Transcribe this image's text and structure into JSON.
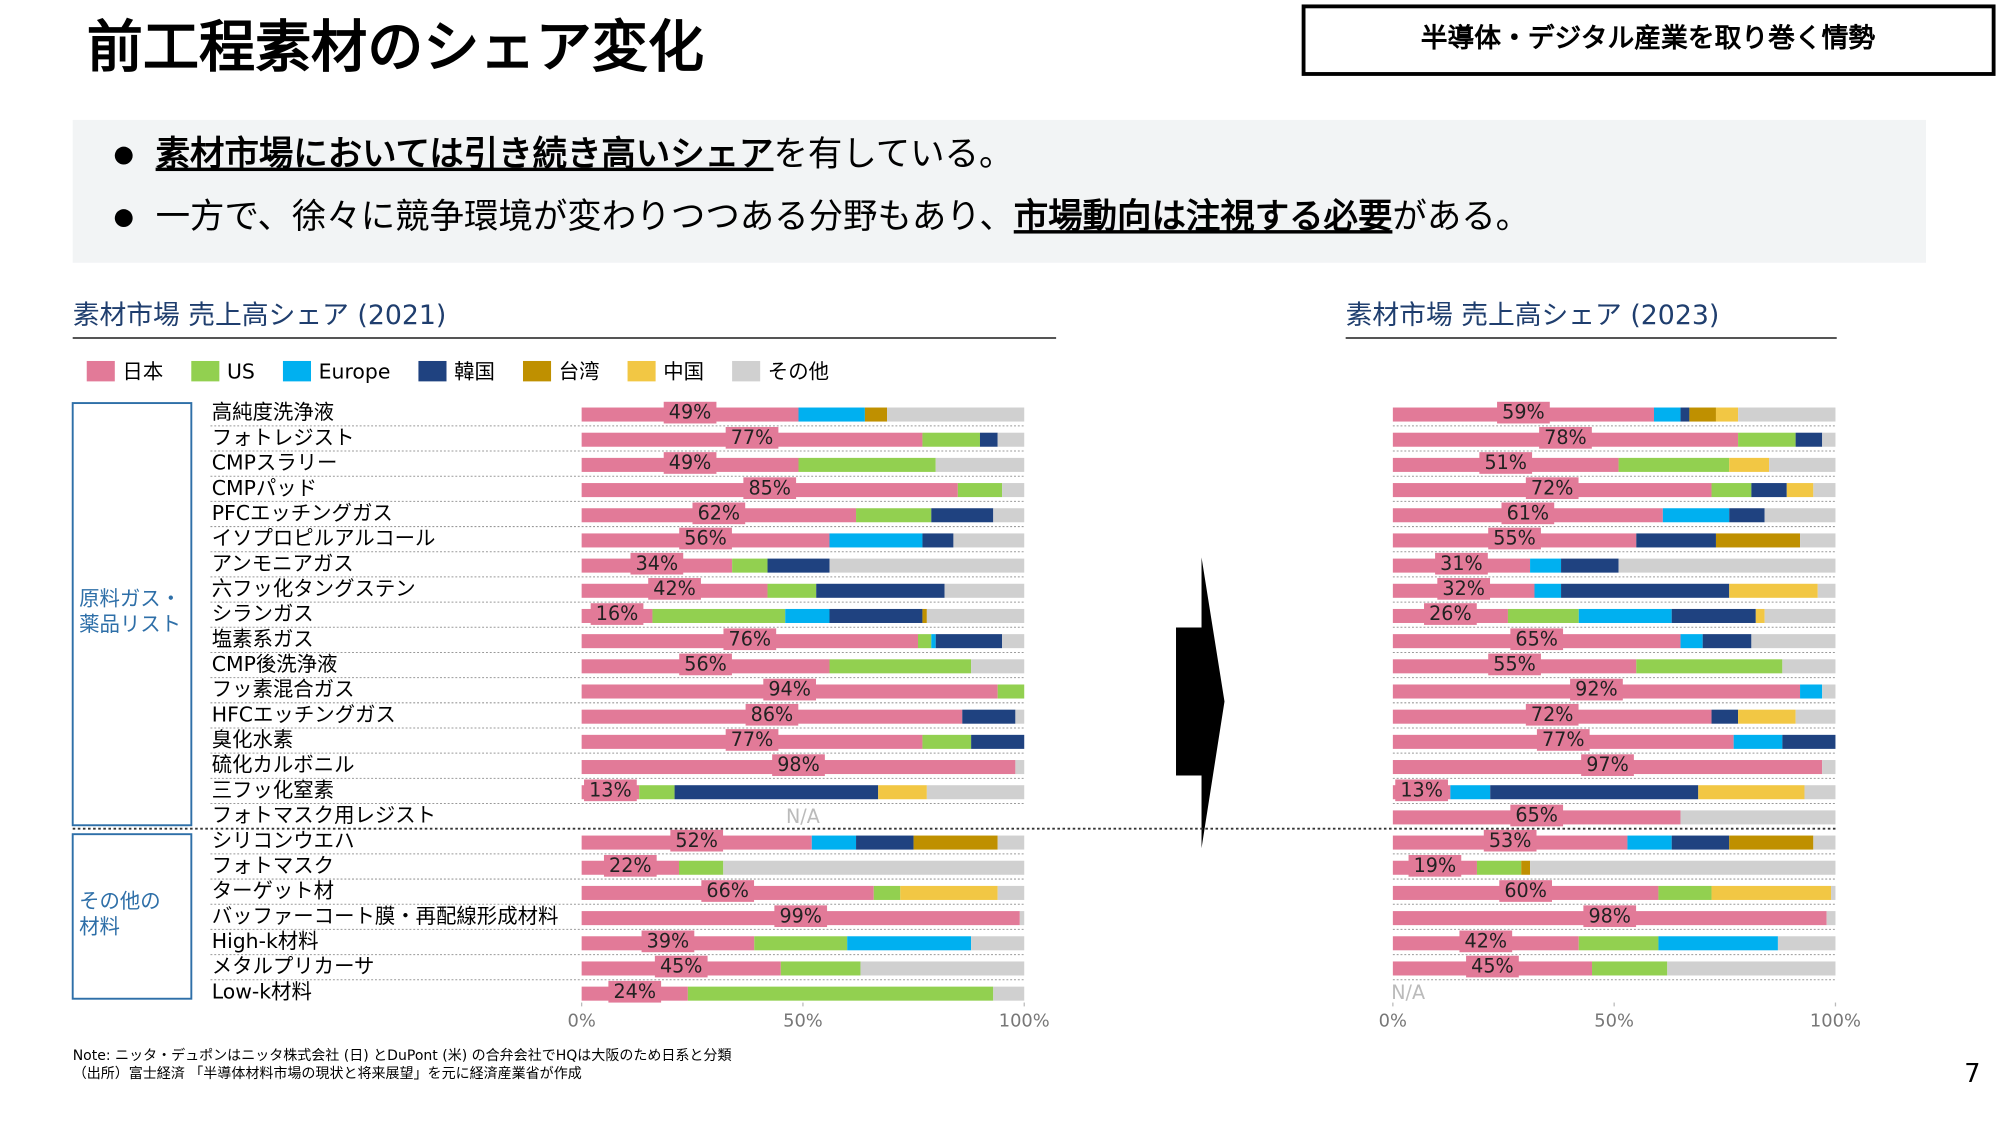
{
  "header": {
    "title": "前工程素材のシェア変化",
    "tag": "半導体・デジタル産業を取り巻く情勢"
  },
  "bullets": [
    [
      "素材市場においては引き続き高いシェア",
      "を有している。"
    ],
    [
      "一方で、徐々に競争環境が変わりつつある分野もあり、",
      "市場動向は注視する必要",
      "がある。"
    ]
  ],
  "groups": [
    [
      "原料ガス・",
      "薬品リスト"
    ],
    [
      "その他の",
      "材料"
    ]
  ],
  "chart_data": [
    {
      "type": "stacked-bar-horizontal",
      "subtitle": "素材市場 売上高シェア (2021)",
      "categories": [
        "高純度洗浄液",
        "フォトレジスト",
        "CMPスラリー",
        "CMPパッド",
        "PFCエッチングガス",
        "イソプロピルアルコール",
        "アンモニアガス",
        "六フッ化タングステン",
        "シランガス",
        "塩素系ガス",
        "CMP後洗浄液",
        "フッ素混合ガス",
        "HFCエッチングガス",
        "臭化水素",
        "硫化カルボニル",
        "三フッ化窒素",
        "フォトマスク用レジスト",
        "シリコンウエハ",
        "フォトマスク",
        "ターゲット材",
        "バッファーコート膜・再配線形成材料",
        "High-k材料",
        "メタルプリカーサ",
        "Low-k材料"
      ],
      "xlim": [
        0,
        100
      ],
      "xticks": [
        {
          "value": 0,
          "label": "0%"
        },
        {
          "value": 50,
          "label": "50%"
        },
        {
          "value": 100,
          "label": "100%"
        }
      ],
      "series": [
        {
          "name": "日本",
          "color": "#e27a98",
          "values": [
            49,
            77,
            49,
            85,
            62,
            56,
            34,
            42,
            16,
            76,
            56,
            94,
            86,
            77,
            98,
            13,
            null,
            52,
            22,
            66,
            99,
            39,
            45,
            24
          ],
          "value_labels": [
            "49%",
            "77%",
            "49%",
            "85%",
            "62%",
            "56%",
            "34%",
            "42%",
            "16%",
            "76%",
            "56%",
            "94%",
            "86%",
            "77%",
            "98%",
            "13%",
            "N/A",
            "52%",
            "22%",
            "66%",
            "99%",
            "39%",
            "45%",
            "24%"
          ]
        },
        {
          "name": "US",
          "color": "#92d050",
          "values": [
            0,
            13,
            31,
            10,
            17,
            0,
            8,
            11,
            30,
            3,
            32,
            6,
            0,
            11,
            0,
            8,
            null,
            0,
            10,
            6,
            0,
            21,
            18,
            69
          ]
        },
        {
          "name": "Europe",
          "color": "#00b0f0",
          "values": [
            15,
            0,
            0,
            0,
            0,
            21,
            0,
            0,
            10,
            1,
            0,
            0,
            0,
            0,
            0,
            0,
            null,
            10,
            0,
            0,
            0,
            28,
            0,
            0
          ]
        },
        {
          "name": "韓国",
          "color": "#1f4280",
          "values": [
            0,
            4,
            0,
            0,
            14,
            7,
            14,
            29,
            21,
            15,
            0,
            0,
            12,
            12,
            0,
            46,
            null,
            13,
            0,
            0,
            0,
            0,
            0,
            0
          ]
        },
        {
          "name": "台湾",
          "color": "#bf9000",
          "values": [
            5,
            0,
            0,
            0,
            0,
            0,
            0,
            0,
            1,
            0,
            0,
            0,
            0,
            0,
            0,
            0,
            null,
            19,
            0,
            0,
            0,
            0,
            0,
            0
          ]
        },
        {
          "name": "中国",
          "color": "#f2c744",
          "values": [
            0,
            0,
            0,
            0,
            0,
            0,
            0,
            0,
            0,
            0,
            0,
            0,
            0,
            0,
            0,
            11,
            null,
            0,
            0,
            22,
            0,
            0,
            0,
            0
          ]
        },
        {
          "name": "その他",
          "color": "#d0d0d0",
          "values": [
            31,
            6,
            20,
            5,
            7,
            16,
            44,
            18,
            22,
            5,
            12,
            0,
            2,
            0,
            2,
            22,
            null,
            6,
            68,
            6,
            1,
            12,
            37,
            7
          ]
        }
      ]
    },
    {
      "type": "stacked-bar-horizontal",
      "subtitle": "素材市場 売上高シェア (2023)",
      "xlim": [
        0,
        100
      ],
      "xticks": [
        {
          "value": 0,
          "label": "0%"
        },
        {
          "value": 50,
          "label": "50%"
        },
        {
          "value": 100,
          "label": "100%"
        }
      ],
      "series": [
        {
          "color": "#e27a98",
          "values": [
            59,
            78,
            51,
            72,
            61,
            55,
            31,
            32,
            26,
            65,
            55,
            92,
            72,
            77,
            97,
            13,
            65,
            53,
            19,
            60,
            98,
            42,
            45,
            null
          ],
          "value_labels": [
            "59%",
            "78%",
            "51%",
            "72%",
            "61%",
            "55%",
            "31%",
            "32%",
            "26%",
            "65%",
            "55%",
            "92%",
            "72%",
            "77%",
            "97%",
            "13%",
            "65%",
            "53%",
            "19%",
            "60%",
            "98%",
            "42%",
            "45%",
            "N/A"
          ]
        },
        {
          "color": "#92d050",
          "values": [
            0,
            13,
            25,
            9,
            0,
            0,
            0,
            0,
            16,
            0,
            33,
            0,
            0,
            0,
            0,
            0,
            0,
            0,
            10,
            12,
            0,
            18,
            17,
            null
          ]
        },
        {
          "color": "#00b0f0",
          "values": [
            6,
            0,
            0,
            0,
            15,
            0,
            7,
            6,
            21,
            5,
            0,
            5,
            0,
            11,
            0,
            9,
            0,
            10,
            0,
            0,
            0,
            27,
            0,
            null
          ]
        },
        {
          "color": "#1f4280",
          "values": [
            2,
            6,
            0,
            8,
            8,
            18,
            13,
            38,
            19,
            11,
            0,
            0,
            6,
            12,
            0,
            47,
            0,
            13,
            0,
            0,
            0,
            0,
            0,
            null
          ]
        },
        {
          "color": "#bf9000",
          "values": [
            6,
            0,
            0,
            0,
            0,
            19,
            0,
            0,
            0,
            0,
            0,
            0,
            0,
            0,
            0,
            0,
            0,
            19,
            2,
            0,
            0,
            0,
            0,
            null
          ]
        },
        {
          "color": "#f2c744",
          "values": [
            5,
            0,
            9,
            6,
            0,
            0,
            0,
            20,
            2,
            0,
            0,
            0,
            13,
            0,
            0,
            24,
            0,
            0,
            0,
            27,
            0,
            0,
            0,
            null
          ]
        },
        {
          "color": "#d0d0d0",
          "values": [
            22,
            3,
            15,
            5,
            16,
            8,
            49,
            4,
            16,
            19,
            12,
            3,
            9,
            0,
            3,
            7,
            35,
            5,
            69,
            1,
            2,
            13,
            38,
            null
          ]
        }
      ]
    }
  ],
  "notes": [
    "Note: ニッタ・デュポンはニッタ株式会社 (日) とDuPont (米) の合弁会社でHQは大阪のため日系と分類",
    "（出所）富士経済 「半導体材料市場の現状と将来展望」を元に経済産業省が作成"
  ],
  "page_number": "7"
}
